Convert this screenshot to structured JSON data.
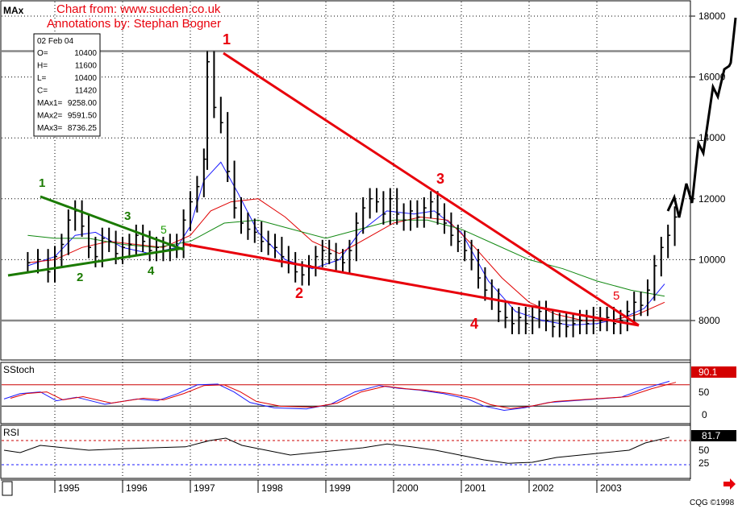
{
  "header": {
    "title": "MAx",
    "source": "Chart from: www.sucden.co.uk",
    "annotator": "Annotations by: Stephan Bogner"
  },
  "info_box": {
    "date": "02 Feb 04",
    "rows": [
      {
        "label": "O=",
        "value": "10400"
      },
      {
        "label": "H=",
        "value": "11600"
      },
      {
        "label": "L=",
        "value": "10400"
      },
      {
        "label": "C=",
        "value": "11420"
      },
      {
        "label": "MAx1=",
        "value": "9258.00"
      },
      {
        "label": "MAx2=",
        "value": "9591.50"
      },
      {
        "label": "MAx3=",
        "value": "8736.25"
      }
    ]
  },
  "panes": {
    "stoch": {
      "title": "SStoch",
      "value": "90.1",
      "ticks": [
        "50",
        "0"
      ]
    },
    "rsi": {
      "title": "RSI",
      "value": "81.7",
      "ticks": [
        "50",
        "25"
      ]
    }
  },
  "footer": {
    "copyright": "CQG ©1998",
    "arrow": "red-right-arrow-icon"
  },
  "colors": {
    "bars": "#000000",
    "ma_fast": "#1a1aff",
    "ma_mid": "#e00000",
    "ma_slow": "#118811",
    "annotation_red": "#e8000b",
    "annotation_green": "#1a7a00",
    "hline": "#888888",
    "value_box_bg": "#d40000"
  },
  "chart_data": [
    {
      "type": "ohlc",
      "title": "MAx",
      "x": [
        "1995",
        "1996",
        "1997",
        "1998",
        "1999",
        "2000",
        "2001",
        "2002",
        "2003"
      ],
      "ylim": [
        7000,
        18500
      ],
      "yticks": [
        8000,
        10000,
        12000,
        14000,
        16000,
        18000
      ],
      "horizontal_lines": [
        16850,
        8000
      ],
      "series": [
        {
          "name": "price",
          "points": [
            {
              "t": 1994.6,
              "c": 9900
            },
            {
              "t": 1994.75,
              "c": 10000
            },
            {
              "t": 1994.9,
              "c": 9600
            },
            {
              "t": 1995.0,
              "c": 10100
            },
            {
              "t": 1995.1,
              "c": 10500
            },
            {
              "t": 1995.2,
              "c": 11300
            },
            {
              "t": 1995.3,
              "c": 11600
            },
            {
              "t": 1995.4,
              "c": 11100
            },
            {
              "t": 1995.5,
              "c": 10400
            },
            {
              "t": 1995.6,
              "c": 10100
            },
            {
              "t": 1995.7,
              "c": 10700
            },
            {
              "t": 1995.8,
              "c": 10600
            },
            {
              "t": 1995.9,
              "c": 10200
            },
            {
              "t": 1996.0,
              "c": 10400
            },
            {
              "t": 1996.1,
              "c": 10500
            },
            {
              "t": 1996.2,
              "c": 10800
            },
            {
              "t": 1996.3,
              "c": 10600
            },
            {
              "t": 1996.4,
              "c": 10300
            },
            {
              "t": 1996.5,
              "c": 10400
            },
            {
              "t": 1996.6,
              "c": 10300
            },
            {
              "t": 1996.7,
              "c": 10500
            },
            {
              "t": 1996.8,
              "c": 10400
            },
            {
              "t": 1996.9,
              "c": 11300
            },
            {
              "t": 1997.0,
              "c": 11900
            },
            {
              "t": 1997.1,
              "c": 12400
            },
            {
              "t": 1997.2,
              "c": 13300
            },
            {
              "t": 1997.25,
              "c": 16500
            },
            {
              "t": 1997.35,
              "c": 15000
            },
            {
              "t": 1997.45,
              "c": 14500
            },
            {
              "t": 1997.55,
              "c": 12900
            },
            {
              "t": 1997.65,
              "c": 11700
            },
            {
              "t": 1997.75,
              "c": 11200
            },
            {
              "t": 1997.85,
              "c": 11000
            },
            {
              "t": 1997.95,
              "c": 10900
            },
            {
              "t": 1998.05,
              "c": 10600
            },
            {
              "t": 1998.15,
              "c": 10500
            },
            {
              "t": 1998.25,
              "c": 10400
            },
            {
              "t": 1998.35,
              "c": 10100
            },
            {
              "t": 1998.45,
              "c": 9900
            },
            {
              "t": 1998.55,
              "c": 9600
            },
            {
              "t": 1998.65,
              "c": 9500
            },
            {
              "t": 1998.75,
              "c": 9800
            },
            {
              "t": 1998.85,
              "c": 10100
            },
            {
              "t": 1998.95,
              "c": 10300
            },
            {
              "t": 1999.05,
              "c": 10200
            },
            {
              "t": 1999.15,
              "c": 10000
            },
            {
              "t": 1999.25,
              "c": 9900
            },
            {
              "t": 1999.35,
              "c": 10300
            },
            {
              "t": 1999.45,
              "c": 11200
            },
            {
              "t": 1999.55,
              "c": 11700
            },
            {
              "t": 1999.65,
              "c": 12000
            },
            {
              "t": 1999.75,
              "c": 11900
            },
            {
              "t": 1999.85,
              "c": 11500
            },
            {
              "t": 1999.95,
              "c": 12000
            },
            {
              "t": 2000.05,
              "c": 11500
            },
            {
              "t": 2000.15,
              "c": 11300
            },
            {
              "t": 2000.25,
              "c": 11600
            },
            {
              "t": 2000.35,
              "c": 11400
            },
            {
              "t": 2000.45,
              "c": 11700
            },
            {
              "t": 2000.55,
              "c": 11900
            },
            {
              "t": 2000.65,
              "c": 11500
            },
            {
              "t": 2000.75,
              "c": 11200
            },
            {
              "t": 2000.85,
              "c": 10800
            },
            {
              "t": 2000.95,
              "c": 10600
            },
            {
              "t": 2001.05,
              "c": 10300
            },
            {
              "t": 2001.15,
              "c": 10000
            },
            {
              "t": 2001.25,
              "c": 9400
            },
            {
              "t": 2001.35,
              "c": 9000
            },
            {
              "t": 2001.45,
              "c": 8700
            },
            {
              "t": 2001.55,
              "c": 8300
            },
            {
              "t": 2001.65,
              "c": 8100
            },
            {
              "t": 2001.75,
              "c": 7900
            },
            {
              "t": 2001.85,
              "c": 8100
            },
            {
              "t": 2001.95,
              "c": 7900
            },
            {
              "t": 2002.05,
              "c": 8100
            },
            {
              "t": 2002.15,
              "c": 8300
            },
            {
              "t": 2002.25,
              "c": 8000
            },
            {
              "t": 2002.35,
              "c": 7800
            },
            {
              "t": 2002.45,
              "c": 7900
            },
            {
              "t": 2002.55,
              "c": 7800
            },
            {
              "t": 2002.65,
              "c": 7900
            },
            {
              "t": 2002.75,
              "c": 8000
            },
            {
              "t": 2002.85,
              "c": 7900
            },
            {
              "t": 2002.95,
              "c": 8100
            },
            {
              "t": 2003.05,
              "c": 8000
            },
            {
              "t": 2003.15,
              "c": 8100
            },
            {
              "t": 2003.25,
              "c": 7900
            },
            {
              "t": 2003.35,
              "c": 8000
            },
            {
              "t": 2003.45,
              "c": 8300
            },
            {
              "t": 2003.55,
              "c": 8600
            },
            {
              "t": 2003.65,
              "c": 8500
            },
            {
              "t": 2003.75,
              "c": 9000
            },
            {
              "t": 2003.85,
              "c": 9800
            },
            {
              "t": 2003.95,
              "c": 10400
            },
            {
              "t": 2004.05,
              "c": 10800
            },
            {
              "t": 2004.15,
              "c": 11400
            }
          ]
        },
        {
          "name": "MAx1",
          "x": [
            1994.6,
            1995.0,
            1995.3,
            1995.6,
            1996.0,
            1996.4,
            1996.8,
            1997.0,
            1997.2,
            1997.45,
            1997.7,
            1998.0,
            1998.4,
            1998.8,
            1999.2,
            1999.5,
            1999.9,
            2000.3,
            2000.6,
            2001.0,
            2001.4,
            2001.8,
            2002.2,
            2002.6,
            2003.0,
            2003.4,
            2003.7,
            2004.0
          ],
          "y": [
            9800,
            10100,
            10800,
            10900,
            10400,
            10200,
            10400,
            11100,
            12600,
            13200,
            12200,
            10900,
            10000,
            9700,
            10000,
            10900,
            11600,
            11500,
            11600,
            10900,
            9300,
            8300,
            8000,
            7850,
            7900,
            8100,
            8400,
            9200
          ]
        },
        {
          "name": "MAx2",
          "x": [
            1994.6,
            1995.0,
            1995.4,
            1995.8,
            1996.2,
            1996.6,
            1997.0,
            1997.3,
            1997.6,
            1998.0,
            1998.4,
            1998.8,
            1999.2,
            1999.6,
            2000.0,
            2000.4,
            2000.8,
            2001.2,
            2001.6,
            2002.0,
            2002.4,
            2002.8,
            2003.2,
            2003.6,
            2004.0
          ],
          "y": [
            9900,
            10000,
            10400,
            10600,
            10500,
            10400,
            10800,
            11600,
            11900,
            12000,
            11400,
            10600,
            10200,
            10700,
            11200,
            11400,
            11300,
            10400,
            9400,
            8600,
            8200,
            8000,
            8000,
            8200,
            8600
          ]
        },
        {
          "name": "MAx3",
          "x": [
            1994.6,
            1995.0,
            1995.5,
            1996.0,
            1996.5,
            1997.0,
            1997.5,
            1998.0,
            1998.5,
            1999.0,
            1999.5,
            2000.0,
            2000.5,
            2001.0,
            2001.5,
            2002.0,
            2002.5,
            2003.0,
            2003.5,
            2004.0
          ],
          "y": [
            10800,
            10700,
            10700,
            10500,
            10400,
            10600,
            11200,
            11300,
            11000,
            10700,
            11000,
            11300,
            11300,
            11000,
            10500,
            10000,
            9700,
            9300,
            9000,
            8800
          ]
        }
      ]
    },
    {
      "type": "line",
      "title": "SStoch",
      "ylim": [
        0,
        100
      ],
      "yticks": [
        0,
        50
      ],
      "last": 90.1
    },
    {
      "type": "line",
      "title": "RSI",
      "ylim": [
        0,
        100
      ],
      "yticks": [
        25,
        50
      ],
      "last": 81.7
    }
  ],
  "annotations": {
    "red_labels": [
      "1",
      "2",
      "3",
      "4",
      "5"
    ],
    "green_labels": [
      "1",
      "2",
      "3",
      "4",
      "5"
    ]
  }
}
